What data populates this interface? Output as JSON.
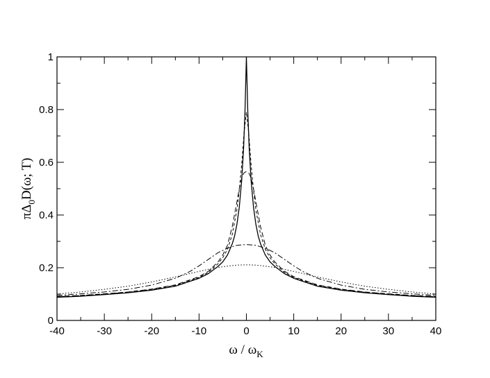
{
  "chart_data": {
    "type": "line",
    "xlabel": {
      "main": "ω / ω",
      "sub": "K"
    },
    "ylabel": {
      "pre": "πΔ",
      "sub": "0",
      "post": "D(ω; T)"
    },
    "xlim": [
      -40,
      40
    ],
    "ylim": [
      0,
      1
    ],
    "x_ticks": [
      -40,
      -30,
      -20,
      -10,
      0,
      10,
      20,
      30,
      40
    ],
    "y_ticks": [
      0,
      0.2,
      0.4,
      0.6,
      0.8,
      1
    ],
    "x_tick_labels": [
      "-40",
      "-30",
      "-20",
      "-10",
      "0",
      "10",
      "20",
      "30",
      "40"
    ],
    "y_tick_labels": [
      "0",
      "0.2",
      "0.4",
      "0.6",
      "0.8",
      "1"
    ],
    "grid": false,
    "series": [
      {
        "style": "solid",
        "x": [
          -40,
          -35,
          -30,
          -25,
          -20,
          -15,
          -10,
          -8,
          -6,
          -5,
          -4,
          -3,
          -2.5,
          -2,
          -1.5,
          -1,
          -0.6,
          -0.3,
          0,
          0.3,
          0.6,
          1,
          1.5,
          2,
          2.5,
          3,
          4,
          5,
          6,
          8,
          10,
          15,
          20,
          25,
          30,
          35,
          40
        ],
        "y": [
          0.088,
          0.092,
          0.098,
          0.105,
          0.115,
          0.13,
          0.16,
          0.178,
          0.205,
          0.222,
          0.248,
          0.29,
          0.32,
          0.365,
          0.43,
          0.53,
          0.65,
          0.79,
          1.0,
          0.79,
          0.65,
          0.53,
          0.43,
          0.365,
          0.32,
          0.29,
          0.248,
          0.222,
          0.205,
          0.178,
          0.16,
          0.13,
          0.115,
          0.105,
          0.098,
          0.092,
          0.088
        ]
      },
      {
        "style": "dashed",
        "x": [
          -40,
          -35,
          -30,
          -25,
          -20,
          -15,
          -10,
          -8,
          -6,
          -5,
          -4,
          -3,
          -2,
          -1.5,
          -1,
          -0.5,
          0,
          0.5,
          1,
          1.5,
          2,
          3,
          4,
          5,
          6,
          8,
          10,
          15,
          20,
          25,
          30,
          35,
          40
        ],
        "y": [
          0.09,
          0.094,
          0.1,
          0.107,
          0.118,
          0.133,
          0.163,
          0.183,
          0.215,
          0.238,
          0.27,
          0.325,
          0.42,
          0.495,
          0.59,
          0.71,
          0.79,
          0.71,
          0.59,
          0.495,
          0.42,
          0.325,
          0.27,
          0.238,
          0.215,
          0.183,
          0.163,
          0.133,
          0.118,
          0.107,
          0.1,
          0.094,
          0.09
        ]
      },
      {
        "style": "long-dash",
        "x": [
          -40,
          -35,
          -30,
          -25,
          -20,
          -15,
          -10,
          -8,
          -6,
          -5,
          -4,
          -3,
          -2,
          -1.5,
          -1,
          -0.5,
          0,
          0.5,
          1,
          1.5,
          2,
          3,
          4,
          5,
          6,
          8,
          10,
          15,
          20,
          25,
          30,
          35,
          40
        ],
        "y": [
          0.091,
          0.095,
          0.101,
          0.108,
          0.119,
          0.135,
          0.166,
          0.187,
          0.222,
          0.248,
          0.285,
          0.355,
          0.45,
          0.5,
          0.54,
          0.56,
          0.565,
          0.56,
          0.54,
          0.5,
          0.45,
          0.355,
          0.285,
          0.248,
          0.222,
          0.187,
          0.166,
          0.135,
          0.119,
          0.108,
          0.101,
          0.095,
          0.091
        ]
      },
      {
        "style": "dash-dot",
        "x": [
          -40,
          -35,
          -30,
          -25,
          -20,
          -15,
          -12,
          -10,
          -8,
          -6,
          -4,
          -2,
          0,
          2,
          4,
          6,
          8,
          10,
          12,
          15,
          20,
          25,
          30,
          35,
          40
        ],
        "y": [
          0.095,
          0.101,
          0.108,
          0.118,
          0.134,
          0.16,
          0.185,
          0.207,
          0.232,
          0.257,
          0.274,
          0.285,
          0.288,
          0.285,
          0.274,
          0.257,
          0.232,
          0.207,
          0.185,
          0.16,
          0.134,
          0.118,
          0.108,
          0.101,
          0.095
        ]
      },
      {
        "style": "dotted",
        "x": [
          -40,
          -35,
          -30,
          -25,
          -20,
          -15,
          -10,
          -8,
          -6,
          -4,
          -2,
          0,
          2,
          4,
          6,
          8,
          10,
          15,
          20,
          25,
          30,
          35,
          40
        ],
        "y": [
          0.1,
          0.108,
          0.118,
          0.13,
          0.146,
          0.165,
          0.186,
          0.194,
          0.201,
          0.206,
          0.21,
          0.211,
          0.21,
          0.206,
          0.201,
          0.194,
          0.186,
          0.165,
          0.146,
          0.13,
          0.118,
          0.108,
          0.1
        ]
      }
    ]
  }
}
